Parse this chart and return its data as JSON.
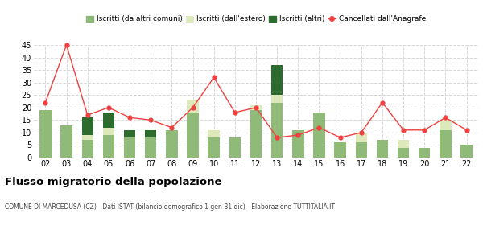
{
  "years": [
    "02",
    "03",
    "04",
    "05",
    "06",
    "07",
    "08",
    "09",
    "10",
    "11",
    "12",
    "13",
    "14",
    "15",
    "16",
    "17",
    "18",
    "19",
    "20",
    "21",
    "22"
  ],
  "iscritti_altri_comuni": [
    19,
    13,
    7,
    9,
    8,
    8,
    11,
    18,
    8,
    8,
    19,
    22,
    11,
    18,
    6,
    6,
    7,
    4,
    4,
    11,
    5
  ],
  "iscritti_estero": [
    0,
    0,
    2,
    3,
    0,
    0,
    0,
    5,
    3,
    0,
    2,
    3,
    0,
    0,
    0,
    4,
    0,
    3,
    0,
    4,
    0
  ],
  "iscritti_altri": [
    0,
    0,
    7,
    6,
    3,
    3,
    0,
    0,
    0,
    0,
    0,
    12,
    0,
    0,
    0,
    0,
    0,
    0,
    0,
    0,
    0
  ],
  "cancellati": [
    22,
    45,
    17,
    20,
    16,
    15,
    12,
    20,
    32,
    18,
    20,
    8,
    9,
    12,
    8,
    10,
    22,
    11,
    11,
    16,
    11
  ],
  "color_altri_comuni": "#8fba78",
  "color_estero": "#dde8bb",
  "color_altri": "#2e6b2e",
  "color_cancellati": "#f04040",
  "background_color": "#ffffff",
  "grid_color": "#d8d8d8",
  "title": "Flusso migratorio della popolazione",
  "subtitle": "COMUNE DI MARCEDUSA (CZ) - Dati ISTAT (bilancio demografico 1 gen-31 dic) - Elaborazione TUTTITALIA.IT",
  "legend_labels": [
    "Iscritti (da altri comuni)",
    "Iscritti (dall'estero)",
    "Iscritti (altri)",
    "Cancellati dall'Anagrafe"
  ],
  "ylim": [
    0,
    45
  ],
  "yticks": [
    0,
    5,
    10,
    15,
    20,
    25,
    30,
    35,
    40,
    45
  ]
}
